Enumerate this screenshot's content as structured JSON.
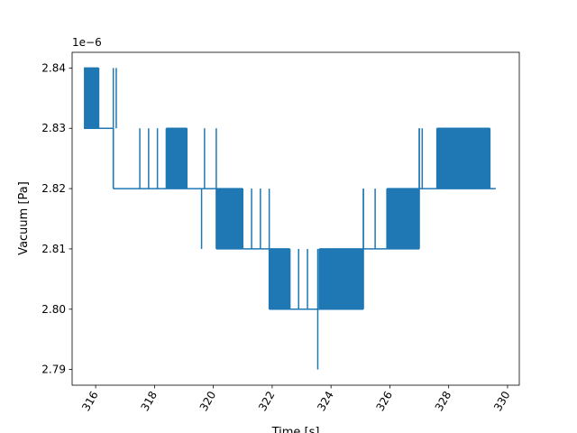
{
  "chart_data": {
    "type": "line",
    "title": "",
    "xlabel": "Time [s]",
    "ylabel": "Vacuum [Pa]",
    "y_offset_text": "1e−6",
    "xlim": [
      315.2,
      330.4
    ],
    "ylim": [
      2.7874,
      2.8426
    ],
    "x_ticks": [
      316,
      318,
      320,
      322,
      324,
      326,
      328,
      330
    ],
    "x_tick_labels": [
      "316",
      "318",
      "320",
      "322",
      "324",
      "326",
      "328",
      "330"
    ],
    "x_tick_rotation": 60,
    "y_ticks": [
      2.79,
      2.8,
      2.81,
      2.82,
      2.83,
      2.84
    ],
    "y_tick_labels": [
      "2.79",
      "2.80",
      "2.81",
      "2.82",
      "2.83",
      "2.84"
    ],
    "grid": false,
    "line_color": "#1f77b4",
    "series": [
      {
        "x_start": 315.6,
        "x_end": 329.6,
        "segments": [
          {
            "x_from": 315.6,
            "x_to": 316.1,
            "low": 2.83,
            "high": 2.84,
            "dense": true
          },
          {
            "x_from": 316.1,
            "x_to": 316.6,
            "low": 2.83,
            "high": 2.84,
            "dense": false
          },
          {
            "x_from": 316.6,
            "x_to": 318.4,
            "low": 2.82,
            "high": 2.83,
            "dense": false
          },
          {
            "x_from": 318.4,
            "x_to": 319.1,
            "low": 2.82,
            "high": 2.83,
            "dense": true
          },
          {
            "x_from": 319.1,
            "x_to": 320.1,
            "low": 2.82,
            "high": 2.83,
            "dense": false
          },
          {
            "x_from": 320.1,
            "x_to": 321.0,
            "low": 2.81,
            "high": 2.82,
            "dense": true
          },
          {
            "x_from": 321.0,
            "x_to": 321.9,
            "low": 2.81,
            "high": 2.82,
            "dense": false
          },
          {
            "x_from": 321.9,
            "x_to": 322.6,
            "low": 2.8,
            "high": 2.81,
            "dense": true
          },
          {
            "x_from": 322.6,
            "x_to": 323.6,
            "low": 2.8,
            "high": 2.81,
            "dense": false
          },
          {
            "x_from": 323.6,
            "x_to": 325.1,
            "low": 2.8,
            "high": 2.81,
            "dense": true
          },
          {
            "x_from": 325.1,
            "x_to": 325.9,
            "low": 2.81,
            "high": 2.82,
            "dense": false
          },
          {
            "x_from": 325.9,
            "x_to": 327.0,
            "low": 2.81,
            "high": 2.82,
            "dense": true
          },
          {
            "x_from": 327.0,
            "x_to": 327.6,
            "low": 2.82,
            "high": 2.83,
            "dense": false
          },
          {
            "x_from": 327.6,
            "x_to": 329.4,
            "low": 2.82,
            "high": 2.83,
            "dense": true
          },
          {
            "x_from": 329.4,
            "x_to": 329.6,
            "low": 2.82,
            "high": 2.82,
            "dense": false
          }
        ],
        "spikes": [
          {
            "x": 316.7,
            "low": 2.83,
            "high": 2.84
          },
          {
            "x": 317.5,
            "low": 2.82,
            "high": 2.83
          },
          {
            "x": 317.8,
            "low": 2.82,
            "high": 2.83
          },
          {
            "x": 318.1,
            "low": 2.82,
            "high": 2.83
          },
          {
            "x": 319.6,
            "low": 2.81,
            "high": 2.82
          },
          {
            "x": 319.7,
            "low": 2.82,
            "high": 2.83
          },
          {
            "x": 321.3,
            "low": 2.81,
            "high": 2.82
          },
          {
            "x": 321.6,
            "low": 2.81,
            "high": 2.82
          },
          {
            "x": 322.9,
            "low": 2.8,
            "high": 2.81
          },
          {
            "x": 323.2,
            "low": 2.8,
            "high": 2.81
          },
          {
            "x": 323.55,
            "low": 2.79,
            "high": 2.81
          },
          {
            "x": 325.5,
            "low": 2.81,
            "high": 2.82
          },
          {
            "x": 327.1,
            "low": 2.82,
            "high": 2.83
          }
        ]
      }
    ]
  }
}
